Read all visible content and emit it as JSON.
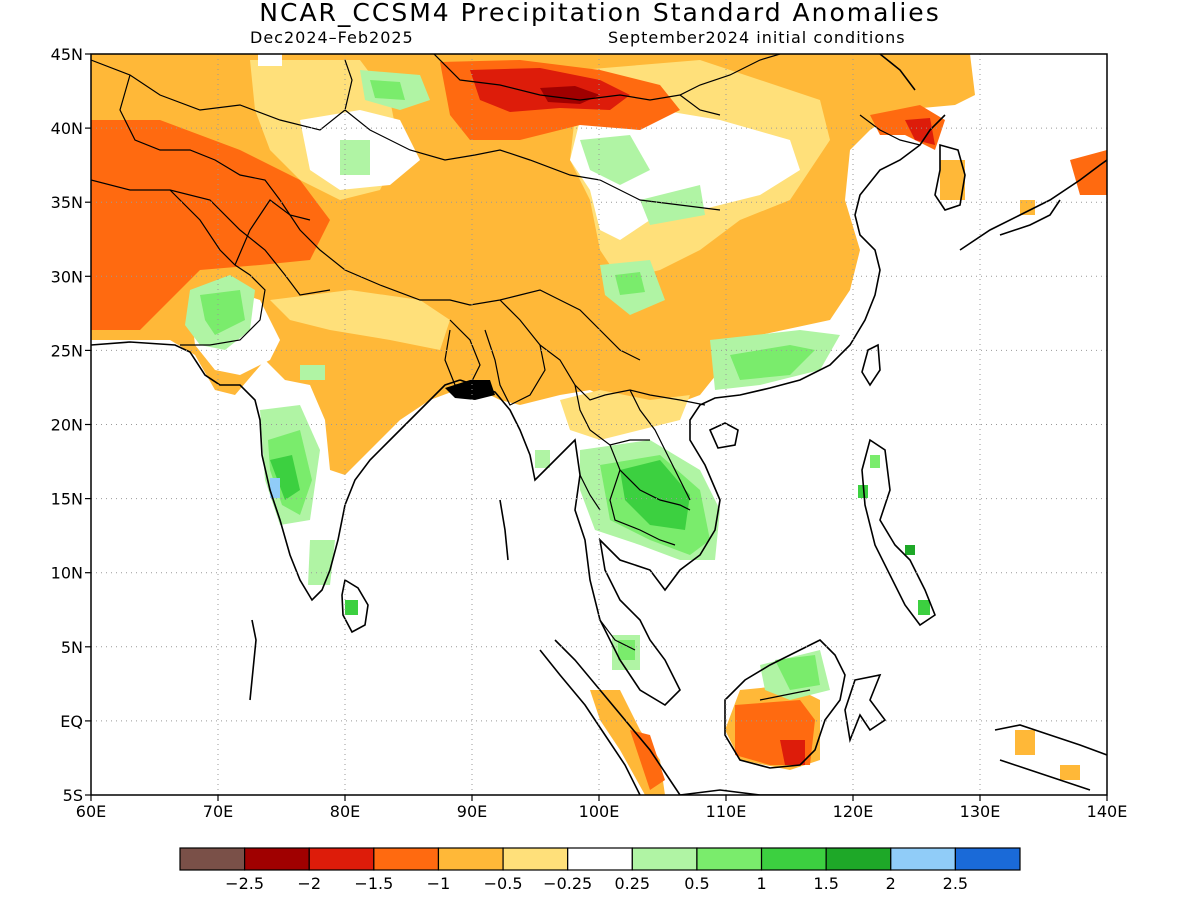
{
  "title": "NCAR_CCSM4 Precipitation Standard Anomalies",
  "subtitle_left": "Dec2024–Feb2025",
  "subtitle_right": "September2024 initial conditions",
  "map": {
    "lon_range": [
      60,
      140
    ],
    "lat_range": [
      -5,
      45
    ],
    "lon_ticks": [
      "60E",
      "70E",
      "80E",
      "90E",
      "100E",
      "110E",
      "120E",
      "130E",
      "140E"
    ],
    "lat_ticks": [
      "5S",
      "EQ",
      "5N",
      "10N",
      "15N",
      "20N",
      "25N",
      "30N",
      "35N",
      "40N",
      "45N"
    ],
    "grid": "dotted"
  },
  "colorbar": {
    "colors": [
      "#7a5048",
      "#a00000",
      "#dd1c0a",
      "#ff6a10",
      "#ffb838",
      "#ffe07a",
      "#ffffff",
      "#b0f4a4",
      "#7aec6c",
      "#3cd040",
      "#1ea828",
      "#90ccf8",
      "#1a6ad8"
    ],
    "labels": [
      "−2.5",
      "−2",
      "−1.5",
      "−1",
      "−0.5",
      "−0.25",
      "0.25",
      "0.5",
      "1",
      "1.5",
      "2",
      "2.5"
    ]
  }
}
